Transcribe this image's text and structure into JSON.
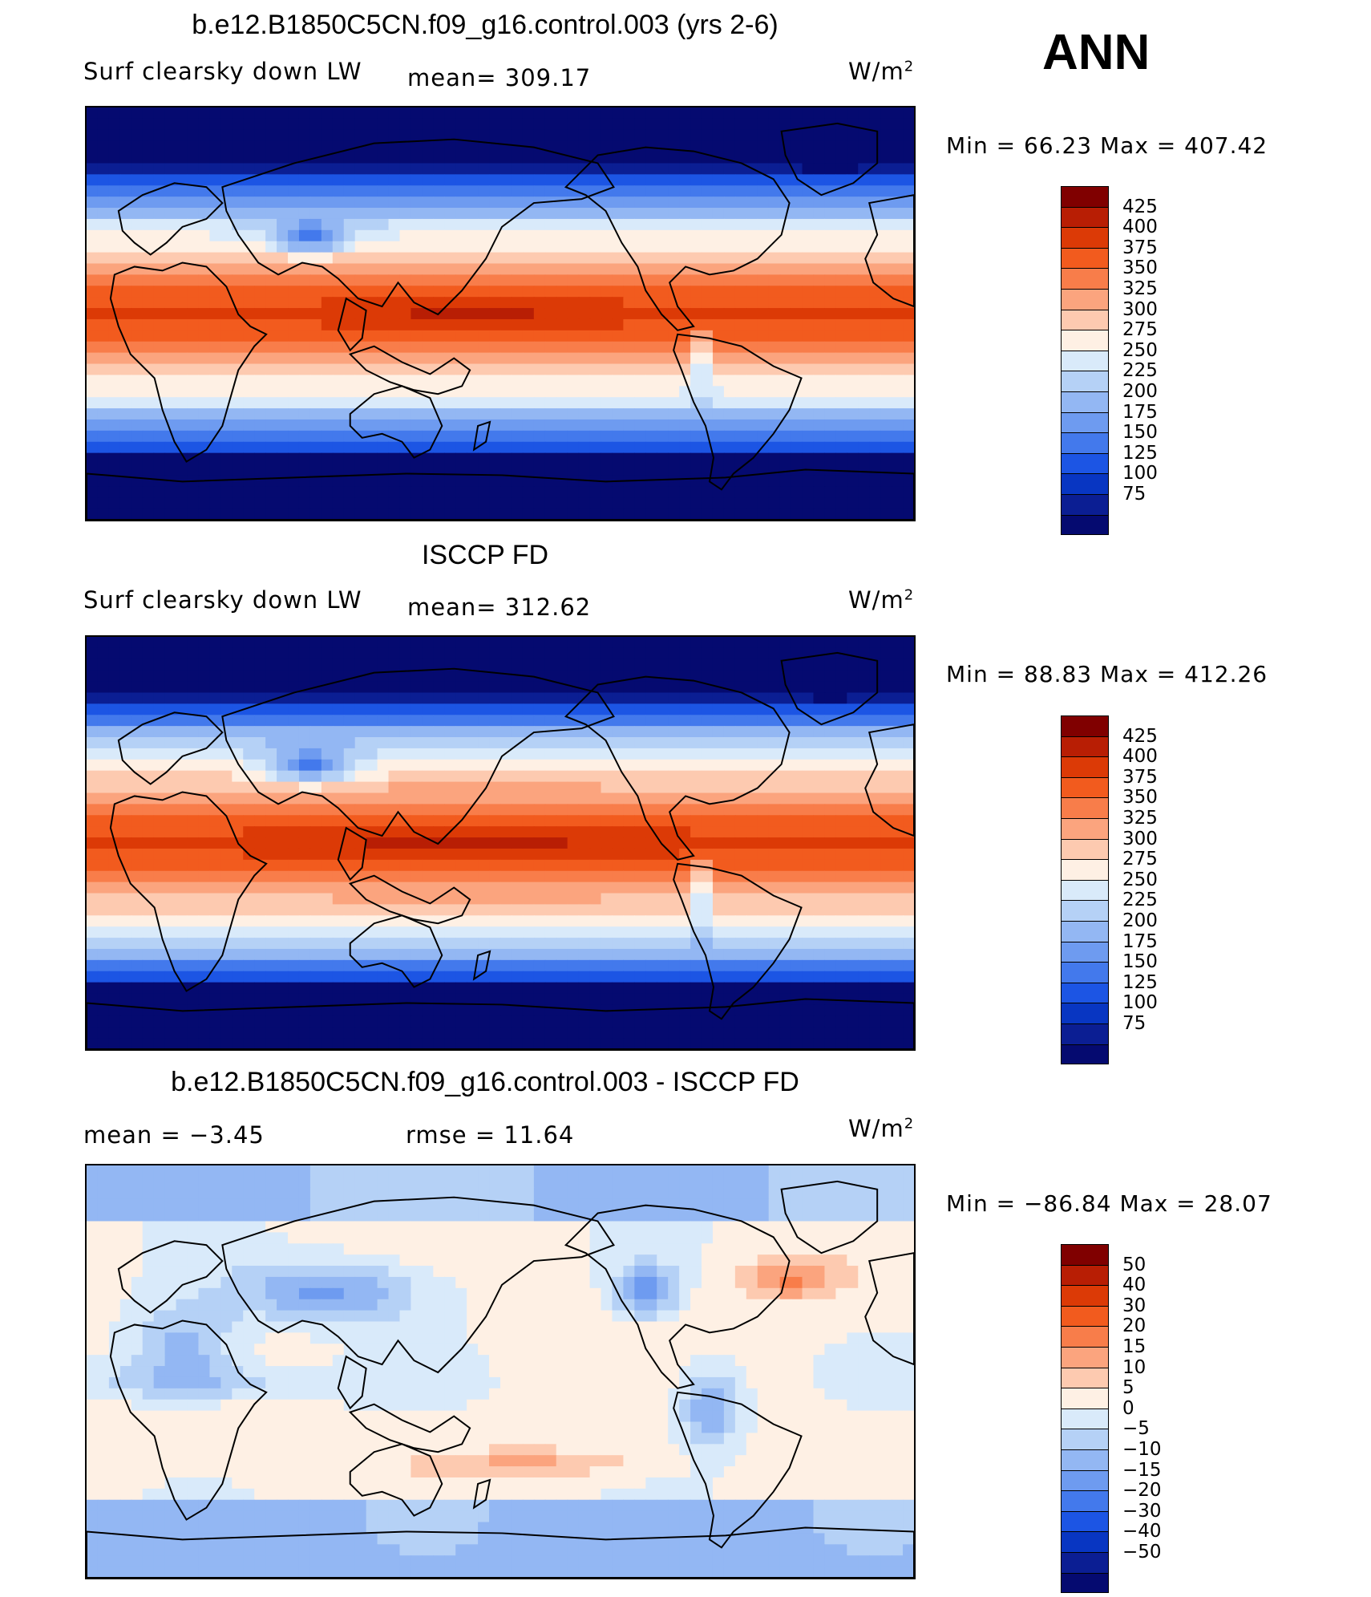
{
  "season": "ANN",
  "panels": [
    {
      "title": "b.e12.B1850C5CN.f09_g16.control.003 (yrs 2-6)",
      "left_label": "Surf  clearsky  down  LW",
      "mid_label": "mean=  309.17",
      "units": "W/m",
      "units_sup": "2",
      "minmax": "Min  =    66.23  Max  =  407.42",
      "kind": "abs"
    },
    {
      "title": "ISCCP FD",
      "left_label": "Surf  clearsky  down  LW",
      "mid_label": "mean=  312.62",
      "units": "W/m",
      "units_sup": "2",
      "minmax": "Min  =    88.83  Max  =  412.26",
      "kind": "abs"
    },
    {
      "title": "b.e12.B1850C5CN.f09_g16.control.003 - ISCCP FD",
      "left_label": "mean  =    −3.45",
      "mid_label": "rmse  =    11.64",
      "units": "W/m",
      "units_sup": "2",
      "minmax": "Min  =  −86.84  Max  =    28.07",
      "kind": "diff"
    }
  ],
  "colorbar_abs": {
    "colors": [
      "#800000",
      "#b81e04",
      "#dc3a06",
      "#f25b1e",
      "#f87d4a",
      "#fba47e",
      "#fdcab0",
      "#fef0e4",
      "#d9eafa",
      "#b5d1f6",
      "#93b7f3",
      "#6e9bf0",
      "#4379ec",
      "#1c55e4",
      "#0836c2",
      "#0b1e93",
      "#050a70"
    ],
    "ticks": [
      "425",
      "400",
      "375",
      "350",
      "325",
      "300",
      "275",
      "250",
      "225",
      "200",
      "175",
      "150",
      "125",
      "100",
      "75"
    ]
  },
  "colorbar_diff": {
    "colors": [
      "#800000",
      "#b81e04",
      "#dc3a06",
      "#f25b1e",
      "#f87d4a",
      "#fba47e",
      "#fdcab0",
      "#fef0e4",
      "#d9eafa",
      "#b5d1f6",
      "#93b7f3",
      "#6e9bf0",
      "#4379ec",
      "#1c55e4",
      "#0836c2",
      "#0b1e93",
      "#050a70"
    ],
    "ticks": [
      "50",
      "40",
      "30",
      "20",
      "15",
      "10",
      "5",
      "0",
      "−5",
      "−10",
      "−15",
      "−20",
      "−30",
      "−40",
      "−50"
    ]
  }
}
